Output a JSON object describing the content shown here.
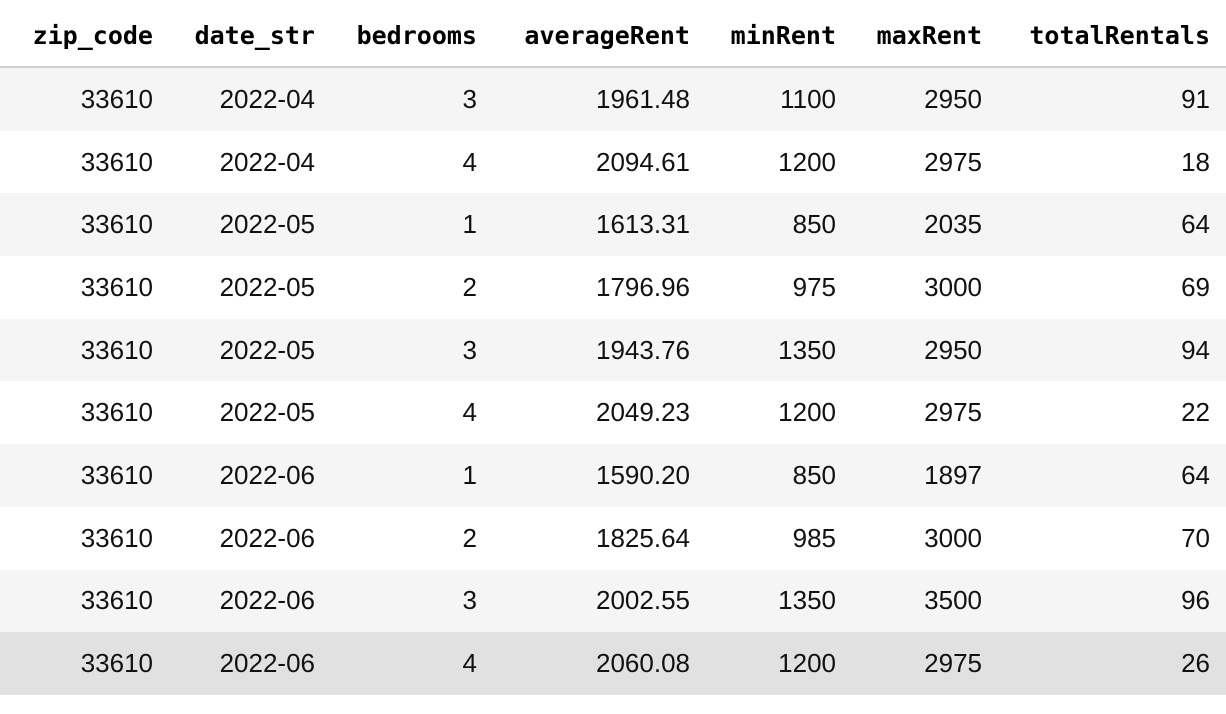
{
  "table": {
    "columns": [
      "zip_code",
      "date_str",
      "bedrooms",
      "averageRent",
      "minRent",
      "maxRent",
      "totalRentals"
    ],
    "rows": [
      [
        "33610",
        "2022-04",
        "3",
        "1961.48",
        "1100",
        "2950",
        "91"
      ],
      [
        "33610",
        "2022-04",
        "4",
        "2094.61",
        "1200",
        "2975",
        "18"
      ],
      [
        "33610",
        "2022-05",
        "1",
        "1613.31",
        "850",
        "2035",
        "64"
      ],
      [
        "33610",
        "2022-05",
        "2",
        "1796.96",
        "975",
        "3000",
        "69"
      ],
      [
        "33610",
        "2022-05",
        "3",
        "1943.76",
        "1350",
        "2950",
        "94"
      ],
      [
        "33610",
        "2022-05",
        "4",
        "2049.23",
        "1200",
        "2975",
        "22"
      ],
      [
        "33610",
        "2022-06",
        "1",
        "1590.20",
        "850",
        "1897",
        "64"
      ],
      [
        "33610",
        "2022-06",
        "2",
        "1825.64",
        "985",
        "3000",
        "70"
      ],
      [
        "33610",
        "2022-06",
        "3",
        "2002.55",
        "1350",
        "3500",
        "96"
      ],
      [
        "33610",
        "2022-06",
        "4",
        "2060.08",
        "1200",
        "2975",
        "26"
      ]
    ],
    "highlighted_row": 9,
    "colors": {
      "stripe": "#f5f5f5",
      "hover": "#e1e1e1",
      "header_border": "#cfcfcf"
    }
  }
}
